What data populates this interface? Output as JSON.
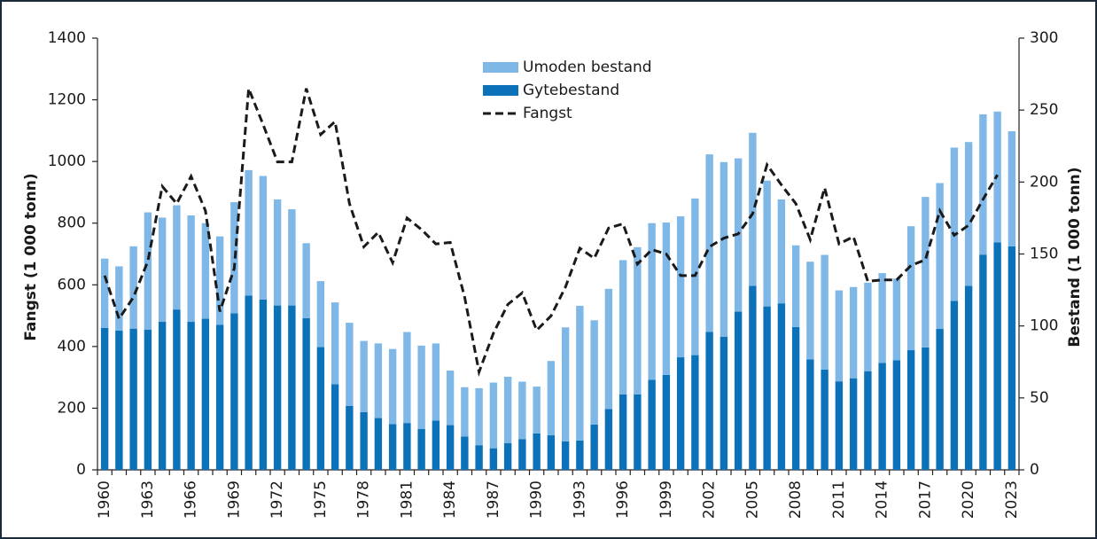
{
  "chart_data": {
    "type": "bar",
    "y_label": "Fangst (1 000 tonn)",
    "y2_label": "Bestand (1 000 tonn)",
    "categories": [
      "1960",
      null,
      null,
      "1963",
      null,
      null,
      "1966",
      null,
      null,
      "1969",
      null,
      null,
      "1972",
      null,
      null,
      "1975",
      null,
      null,
      "1978",
      null,
      null,
      "1981",
      null,
      null,
      "1984",
      null,
      null,
      "1987",
      null,
      null,
      "1990",
      null,
      null,
      "1993",
      null,
      null,
      "1996",
      null,
      null,
      "1999",
      null,
      null,
      "2002",
      null,
      null,
      "2005",
      null,
      null,
      "2008",
      null,
      null,
      "2011",
      null,
      null,
      "2014",
      null,
      null,
      "2017",
      null,
      null,
      "2020",
      null,
      null,
      "2023"
    ],
    "series": [
      {
        "name": "Umoden bestand",
        "type": "bar",
        "color": "#7fb8e6",
        "values": [
          225,
          208,
          267,
          380,
          338,
          338,
          345,
          310,
          287,
          360,
          407,
          401,
          344,
          312,
          243,
          214,
          265,
          270,
          231,
          242,
          244,
          295,
          270,
          250,
          177,
          160,
          185,
          213,
          215,
          186,
          152,
          241,
          370,
          437,
          338,
          390,
          435,
          477,
          508,
          494,
          457,
          508,
          576,
          566,
          497,
          496,
          408,
          337,
          265,
          317,
          372,
          295,
          296,
          287,
          291,
          265,
          402,
          488,
          473,
          497,
          466,
          455,
          424,
          373
        ]
      },
      {
        "name": "Gytebestand",
        "type": "bar",
        "color": "#0b72b9",
        "values": [
          460,
          452,
          458,
          455,
          480,
          520,
          480,
          490,
          470,
          508,
          565,
          552,
          533,
          533,
          492,
          398,
          278,
          207,
          187,
          168,
          148,
          152,
          133,
          160,
          145,
          108,
          80,
          70,
          87,
          100,
          118,
          112,
          92,
          95,
          147,
          197,
          245,
          245,
          292,
          308,
          365,
          372,
          447,
          432,
          513,
          597,
          530,
          540,
          463,
          358,
          325,
          287,
          297,
          320,
          347,
          355,
          388,
          397,
          457,
          548,
          597,
          698,
          738,
          725
        ]
      },
      {
        "name": "Fangst",
        "type": "line",
        "axis": "y2",
        "color": "#1a1a1a",
        "line_style": "dashed",
        "values": [
          135,
          105,
          120,
          145,
          197,
          185,
          204,
          180,
          110,
          140,
          265,
          240,
          214,
          214,
          265,
          233,
          242,
          185,
          155,
          165,
          144,
          175,
          167,
          157,
          158,
          120,
          68,
          95,
          115,
          123,
          97,
          107,
          127,
          154,
          147,
          168,
          171,
          143,
          153,
          150,
          135,
          135,
          155,
          161,
          164,
          178,
          212,
          198,
          185,
          160,
          196,
          157,
          162,
          131,
          132,
          132,
          142,
          146,
          180,
          163,
          170,
          188,
          205,
          null
        ]
      }
    ],
    "ylim": [
      0,
      1400
    ],
    "yticks": [
      0,
      200,
      400,
      600,
      800,
      1000,
      1200,
      1400
    ],
    "y2lim": [
      0,
      300
    ],
    "y2ticks": [
      0,
      50,
      100,
      150,
      200,
      250,
      300
    ],
    "grid": false,
    "legend": "top"
  }
}
